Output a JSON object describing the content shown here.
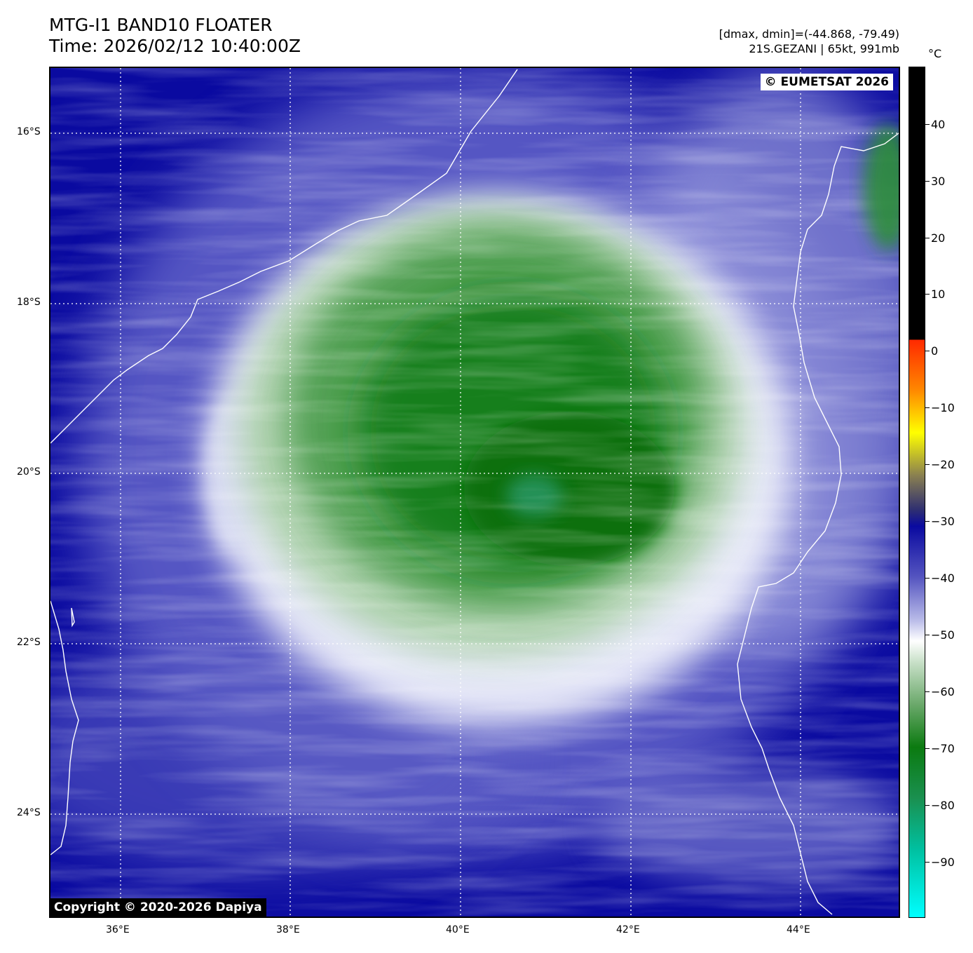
{
  "header": {
    "title_line1": "MTG-I1 BAND10 FLOATER",
    "title_line2": "Time: 2026/02/12 10:40:00Z",
    "range_text": "[dmax, dmin]=(-44.868, -79.49)",
    "storm_text": "21S.GEZANI | 65kt, 991mb"
  },
  "watermarks": {
    "eumetsat": "© EUMETSAT 2026",
    "dapiya": "Copyright © 2020-2026 Dapiya"
  },
  "map": {
    "lat_labels": [
      "16°S",
      "18°S",
      "20°S",
      "22°S",
      "24°S"
    ],
    "lon_labels": [
      "36°E",
      "38°E",
      "40°E",
      "42°E",
      "44°E"
    ],
    "gridlines": "dotted white",
    "coastline_color": "#ffffff"
  },
  "colorbar": {
    "unit": "°C",
    "labels": [
      "40",
      "30",
      "20",
      "10",
      "0",
      "−10",
      "−20",
      "−30",
      "−40",
      "−50",
      "−60",
      "−70",
      "−80",
      "−90"
    ],
    "colors": {
      "warm": "#000000",
      "red": "#ff2a00",
      "yellow": "#ffff00",
      "dark_blue": "#0a0aa0",
      "white": "#ffffff",
      "green": "#0b7a10",
      "cyan": "#00ffff"
    }
  }
}
